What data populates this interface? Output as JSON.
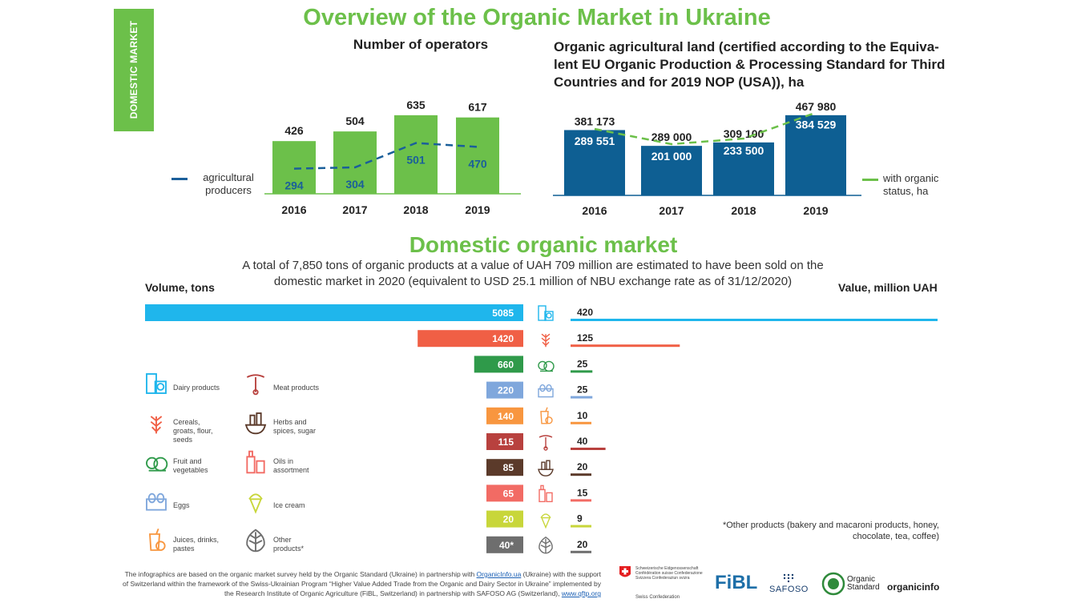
{
  "side_tab": "DOMESTIC MARKET",
  "main_title": "Overview of the Organic Market in Ukraine",
  "colors": {
    "green": "#6cc04a",
    "blue": "#1a5f9a",
    "dark_blue": "#0e5f93"
  },
  "chart_data": [
    {
      "type": "bar",
      "title": "Number of operators",
      "categories": [
        "2016",
        "2017",
        "2018",
        "2019"
      ],
      "series": [
        {
          "name": "",
          "type": "bar",
          "values": [
            426,
            504,
            635,
            617
          ]
        },
        {
          "name": "agricultural producers",
          "type": "line",
          "values": [
            294,
            304,
            501,
            470
          ]
        }
      ],
      "ylim": [
        0,
        700
      ]
    },
    {
      "type": "bar",
      "title": "Organic agricultural land (certified according to the Equiva-lent EU Organic Production & Processing Standard for Third Countries and for 2019 NOP (USA)), ha",
      "categories": [
        "2016",
        "2017",
        "2018",
        "2019"
      ],
      "series": [
        {
          "name": "",
          "type": "bar",
          "values": [
            381173,
            289000,
            309100,
            467980
          ],
          "labels": [
            "381 173",
            "289 000",
            "309 100",
            "467 980"
          ]
        },
        {
          "name": "with organic status, ha",
          "type": "line",
          "values": [
            289551,
            201000,
            233500,
            384529
          ],
          "labels": [
            "289 551",
            "201 000",
            "233 500",
            "384 529"
          ]
        }
      ]
    },
    {
      "type": "bar",
      "title": "Domestic organic market",
      "subtitle": "A total of 7,850 tons of organic products at a value of UAH 709 million are estimated to have been sold on the domestic market in 2020 (equivalent to USD 25.1 million of NBU exchange rate as of 31/12/2020)",
      "xlabel_left": "Volume, tons",
      "xlabel_right": "Value, million UAH",
      "volume": [
        5085,
        1420,
        660,
        220,
        140,
        115,
        85,
        65,
        20,
        40
      ],
      "volume_labels": [
        "5085",
        "1420",
        "660",
        "220",
        "140",
        "115",
        "85",
        "65",
        "20",
        "40*"
      ],
      "value": [
        420,
        125,
        25,
        25,
        10,
        40,
        20,
        15,
        9,
        20
      ],
      "bar_colors": [
        "#1fb6ec",
        "#f05f45",
        "#2f9a4a",
        "#7fa7dc",
        "#f8963f",
        "#b8413e",
        "#5b3a2a",
        "#f26b64",
        "#c8d63a",
        "#6e6e6e"
      ],
      "icons": [
        "dairy-icon",
        "cereals-icon",
        "fruit-vegetables-icon",
        "eggs-icon",
        "juices-icon",
        "meat-icon",
        "herbs-icon",
        "oils-icon",
        "ice-cream-icon",
        "other-icon"
      ]
    }
  ],
  "legend_categories": [
    {
      "label": "Dairy products",
      "icon": "dairy-icon"
    },
    {
      "label": "Meat products",
      "icon": "meat-icon"
    },
    {
      "label": "Cereals, groats, flour, seeds",
      "icon": "cereals-icon"
    },
    {
      "label": "Herbs and spices, sugar",
      "icon": "herbs-icon"
    },
    {
      "label": "Fruit and vegetables",
      "icon": "fruit-vegetables-icon"
    },
    {
      "label": "Oils in assortment",
      "icon": "oils-icon"
    },
    {
      "label": "Eggs",
      "icon": "eggs-icon"
    },
    {
      "label": "Ice cream",
      "icon": "ice-cream-icon"
    },
    {
      "label": "Juices, drinks, pastes",
      "icon": "juices-icon"
    },
    {
      "label": "Other products*",
      "icon": "other-icon"
    }
  ],
  "footnote": "*Other products (bakery and macaroni products, honey, chocolate, tea, coffee)",
  "source": {
    "part1": "The infographics are based on the organic market survey held by the Organic Standard (Ukraine) in partnership with ",
    "link1": "OrganicInfo.ua",
    "part2": " (Ukraine) with the support of Switzerland within the framework of the Swiss-Ukrainian Program “Higher Value Added Trade  from the Organic and Dairy Sector in Ukraine” implemented by the Research Institute of Organic Agriculture (FiBL, Switzerland)  in partnership with SAFOSO AG (Switzerland), ",
    "link2": "www.qftp.org"
  },
  "logos": {
    "swiss": "Schweizerische Eidgenossenschaft Confédération suisse Confederazione Svizzera Confederaziun svizra",
    "swiss_sub": "Swiss Confederation",
    "fibl": "FiBL",
    "safoso": "SAFOSO",
    "organic_standard": "Organic Standard",
    "organicinfo": "organicinfo"
  }
}
